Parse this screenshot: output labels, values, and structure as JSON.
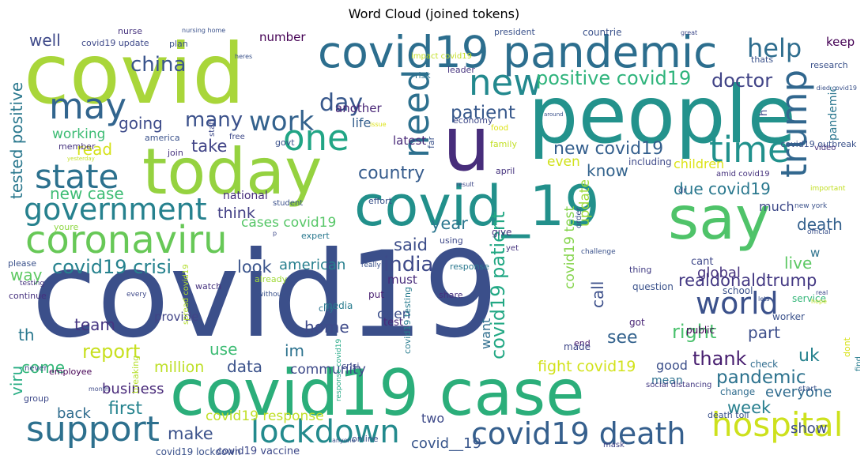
{
  "chart_data": {
    "type": "wordcloud",
    "title": "Word Cloud (joined tokens)",
    "colormap": "viridis",
    "background": "#ffffff",
    "words": [
      {
        "text": "covid19",
        "color": "#3b4f8a"
      },
      {
        "text": "covid",
        "color": "#a9d63a"
      },
      {
        "text": "people",
        "color": "#23928c"
      },
      {
        "text": "covid19 case",
        "color": "#2bae7a"
      },
      {
        "text": "today",
        "color": "#95d240"
      },
      {
        "text": "covid_19",
        "color": "#22908b"
      },
      {
        "text": "say",
        "color": "#4fc369"
      },
      {
        "text": "covid19 pandemic",
        "color": "#2c6e8e"
      },
      {
        "text": "u",
        "color": "#472d7b"
      },
      {
        "text": "coronaviru",
        "color": "#67c857"
      },
      {
        "text": "covid19 death",
        "color": "#355f8d"
      },
      {
        "text": "hospital",
        "color": "#cde11d"
      },
      {
        "text": "support",
        "color": "#2d708e"
      },
      {
        "text": "lockdown",
        "color": "#238a8d"
      },
      {
        "text": "government",
        "color": "#26818e"
      },
      {
        "text": "state",
        "color": "#2c718e"
      },
      {
        "text": "one",
        "color": "#21a585"
      },
      {
        "text": "may",
        "color": "#32658e"
      },
      {
        "text": "time",
        "color": "#21918c"
      },
      {
        "text": "trump",
        "color": "#31678e"
      },
      {
        "text": "new",
        "color": "#23898e"
      },
      {
        "text": "need",
        "color": "#2d708e"
      },
      {
        "text": "world",
        "color": "#3b518b"
      },
      {
        "text": "help",
        "color": "#2e6d8e"
      },
      {
        "text": "day",
        "color": "#38588c"
      },
      {
        "text": "work",
        "color": "#33628d"
      },
      {
        "text": "positive covid19",
        "color": "#2fb47c"
      },
      {
        "text": "covid19 patient",
        "color": "#22a884"
      },
      {
        "text": "china",
        "color": "#3a548c"
      },
      {
        "text": "many",
        "color": "#3b518b"
      },
      {
        "text": "tested positive",
        "color": "#2a788e"
      },
      {
        "text": "covid19 crisi",
        "color": "#26828e"
      },
      {
        "text": "new covid19",
        "color": "#345f8d"
      },
      {
        "text": "doctor",
        "color": "#414487"
      },
      {
        "text": "country",
        "color": "#365c8d"
      },
      {
        "text": "india",
        "color": "#3e4a89"
      },
      {
        "text": "realdonaldtrump",
        "color": "#443983"
      },
      {
        "text": "pandemic",
        "color": "#2c728e"
      },
      {
        "text": "patient",
        "color": "#38598c"
      },
      {
        "text": "due covid19",
        "color": "#2a788e"
      },
      {
        "text": "report",
        "color": "#c8e020"
      },
      {
        "text": "first",
        "color": "#25838e"
      },
      {
        "text": "uk",
        "color": "#26828e"
      },
      {
        "text": "thank",
        "color": "#481f70"
      },
      {
        "text": "right",
        "color": "#4ac16d"
      },
      {
        "text": "see",
        "color": "#33628d"
      },
      {
        "text": "going",
        "color": "#3e4c8a"
      },
      {
        "text": "think",
        "color": "#423f85"
      },
      {
        "text": "well",
        "color": "#3e4989"
      },
      {
        "text": "new case",
        "color": "#3dbc74"
      },
      {
        "text": "know",
        "color": "#33638d"
      },
      {
        "text": "take",
        "color": "#414487"
      },
      {
        "text": "look",
        "color": "#3a548c"
      },
      {
        "text": "said",
        "color": "#3d4e8a"
      },
      {
        "text": "year",
        "color": "#2a768e"
      },
      {
        "text": "week",
        "color": "#277f8e"
      },
      {
        "text": "team",
        "color": "#453581"
      },
      {
        "text": "home",
        "color": "#3e4a89"
      },
      {
        "text": "call",
        "color": "#3c4f8a"
      },
      {
        "text": "part",
        "color": "#3d4e8a"
      },
      {
        "text": "global",
        "color": "#46337e"
      },
      {
        "text": "live",
        "color": "#5cc863"
      },
      {
        "text": "death",
        "color": "#34618d"
      },
      {
        "text": "fight covid19",
        "color": "#d2e21b"
      },
      {
        "text": "data",
        "color": "#3b528b"
      },
      {
        "text": "use",
        "color": "#3dbc74"
      },
      {
        "text": "come",
        "color": "#35b779"
      },
      {
        "text": "million",
        "color": "#bddf26"
      },
      {
        "text": "viru",
        "color": "#25ac82"
      },
      {
        "text": "business",
        "color": "#482979"
      },
      {
        "text": "back",
        "color": "#2f6c8e"
      },
      {
        "text": "make",
        "color": "#3b528b"
      },
      {
        "text": "covid__19",
        "color": "#39568c"
      },
      {
        "text": "way",
        "color": "#5ec962"
      },
      {
        "text": "th",
        "color": "#2a788e"
      },
      {
        "text": "read",
        "color": "#d5e21a"
      },
      {
        "text": "working",
        "color": "#3dbc74"
      },
      {
        "text": "cases covid19",
        "color": "#56c667"
      },
      {
        "text": "american",
        "color": "#277f8e"
      },
      {
        "text": "im",
        "color": "#2c728e"
      },
      {
        "text": "must",
        "color": "#472a7a"
      },
      {
        "text": "another",
        "color": "#482576"
      },
      {
        "text": "life",
        "color": "#355f8d"
      },
      {
        "text": "latest",
        "color": "#482878"
      },
      {
        "text": "even",
        "color": "#d0e11c"
      },
      {
        "text": "update",
        "color": "#9fda3a"
      },
      {
        "text": "want",
        "color": "#2e6e8e"
      },
      {
        "text": "covid19 test",
        "color": "#84d44b"
      },
      {
        "text": "children",
        "color": "#dde318"
      },
      {
        "text": "number",
        "color": "#440154"
      },
      {
        "text": "show",
        "color": "#3d4d8a"
      },
      {
        "text": "everyone",
        "color": "#2f6b8e"
      },
      {
        "text": "good",
        "color": "#3c4f8a"
      },
      {
        "text": "keep",
        "color": "#440154"
      },
      {
        "text": "pandemic",
        "color": "#2a768e"
      },
      {
        "text": "dont",
        "color": "#d8e219"
      },
      {
        "text": "community",
        "color": "#3e4a89"
      },
      {
        "text": "covid19 response",
        "color": "#c0df25"
      },
      {
        "text": "two",
        "color": "#3e4a89"
      },
      {
        "text": "open",
        "color": "#3c4f8a"
      },
      {
        "text": "student",
        "color": "#3b518b"
      },
      {
        "text": "plan",
        "color": "#3b528b"
      },
      {
        "text": "nurse",
        "color": "#46337e"
      },
      {
        "text": "national",
        "color": "#472d7b"
      },
      {
        "text": "much",
        "color": "#3e4a89"
      },
      {
        "text": "h",
        "color": "#3e4989"
      },
      {
        "text": "w",
        "color": "#2c728e"
      },
      {
        "text": "dr",
        "color": "#3b528b"
      },
      {
        "text": "cant",
        "color": "#3f4889"
      },
      {
        "text": "thing",
        "color": "#433e85"
      },
      {
        "text": "end",
        "color": "#481a6c"
      },
      {
        "text": "school",
        "color": "#3b528b"
      },
      {
        "text": "question",
        "color": "#3b528b"
      },
      {
        "text": "share",
        "color": "#46307e"
      },
      {
        "text": "media",
        "color": "#287c8e"
      },
      {
        "text": "put",
        "color": "#481f70"
      },
      {
        "text": "test",
        "color": "#482878"
      },
      {
        "text": "provide",
        "color": "#414487"
      },
      {
        "text": "public",
        "color": "#440154"
      },
      {
        "text": "got",
        "color": "#482475"
      },
      {
        "text": "made",
        "color": "#3f4889"
      },
      {
        "text": "mean",
        "color": "#2d708e"
      },
      {
        "text": "change",
        "color": "#2f6c8e"
      },
      {
        "text": "service",
        "color": "#34b679"
      },
      {
        "text": "worker",
        "color": "#3b528b"
      },
      {
        "text": "check",
        "color": "#2f6c8e"
      },
      {
        "text": "find",
        "color": "#287c8e"
      },
      {
        "text": "death toll",
        "color": "#3b528b"
      },
      {
        "text": "social distancing",
        "color": "#443a83"
      },
      {
        "text": "start",
        "color": "#3a538b"
      },
      {
        "text": "mask",
        "color": "#414487"
      },
      {
        "text": "employee",
        "color": "#440154"
      },
      {
        "text": "never",
        "color": "#3e4989"
      },
      {
        "text": "group",
        "color": "#3e4989"
      },
      {
        "text": "month",
        "color": "#3e4a89"
      },
      {
        "text": "continue",
        "color": "#46307e"
      },
      {
        "text": "testing",
        "color": "#46337e"
      },
      {
        "text": "please",
        "color": "#3b528b"
      },
      {
        "text": "youre",
        "color": "#8fd744"
      },
      {
        "text": "expert",
        "color": "#2a788e"
      },
      {
        "text": "covid19 lockdown",
        "color": "#3b528b"
      },
      {
        "text": "covid19 vaccine",
        "color": "#3e4989"
      },
      {
        "text": "breaking",
        "color": "#b5de2b"
      },
      {
        "text": "covid19 testing",
        "color": "#287c8e"
      },
      {
        "text": "spread covid19",
        "color": "#b2dd2d"
      },
      {
        "text": "response covid19",
        "color": "#22a884"
      },
      {
        "text": "crisi",
        "color": "#3e4989"
      },
      {
        "text": "online",
        "color": "#3b528b"
      },
      {
        "text": "city",
        "color": "#2c728e"
      },
      {
        "text": "without",
        "color": "#3b528b"
      },
      {
        "text": "already",
        "color": "#a0da39"
      },
      {
        "text": "watch",
        "color": "#46337e"
      },
      {
        "text": "every",
        "color": "#3e4989"
      },
      {
        "text": "really",
        "color": "#3b528b"
      },
      {
        "text": "yet",
        "color": "#46337e"
      },
      {
        "text": "using",
        "color": "#3e4989"
      },
      {
        "text": "challenge",
        "color": "#3b528b"
      },
      {
        "text": "give",
        "color": "#46337e"
      },
      {
        "text": "response",
        "color": "#2a788e"
      },
      {
        "text": "p",
        "color": "#3e4989"
      },
      {
        "text": "effort",
        "color": "#3b528b"
      },
      {
        "text": "result",
        "color": "#3e4989"
      },
      {
        "text": "order",
        "color": "#3b528b"
      },
      {
        "text": "including",
        "color": "#3e4989"
      },
      {
        "text": "april",
        "color": "#46337e"
      },
      {
        "text": "amid covid19",
        "color": "#46337e"
      },
      {
        "text": "new york",
        "color": "#3b528b"
      },
      {
        "text": "important",
        "color": "#c2df23"
      },
      {
        "text": "official",
        "color": "#3b528b"
      },
      {
        "text": "covid19 outbreak",
        "color": "#3b528b"
      },
      {
        "text": "video",
        "color": "#46337e"
      },
      {
        "text": "died covid19",
        "color": "#3b528b"
      },
      {
        "text": "research",
        "color": "#3b528b"
      },
      {
        "text": "thats",
        "color": "#3b528b"
      },
      {
        "text": "risk",
        "color": "#2c728e"
      },
      {
        "text": "leader",
        "color": "#46337e"
      },
      {
        "text": "president",
        "color": "#3b528b"
      },
      {
        "text": "countrie",
        "color": "#3b528b"
      },
      {
        "text": "great",
        "color": "#3e4989"
      },
      {
        "text": "impact covid19",
        "color": "#c2df23"
      },
      {
        "text": "nursing home",
        "color": "#3b528b"
      },
      {
        "text": "covid19 update",
        "color": "#3e4989"
      },
      {
        "text": "heres",
        "color": "#3b528b"
      },
      {
        "text": "anyone",
        "color": "#3b528b"
      },
      {
        "text": "far",
        "color": "#3b528b"
      },
      {
        "text": "food",
        "color": "#dde318"
      },
      {
        "text": "family",
        "color": "#c2df23"
      },
      {
        "text": "economy",
        "color": "#3e4989"
      },
      {
        "text": "issue",
        "color": "#dde318"
      },
      {
        "text": "around",
        "color": "#3b528b"
      },
      {
        "text": "staff",
        "color": "#3e4989"
      },
      {
        "text": "free",
        "color": "#3e4989"
      },
      {
        "text": "govt",
        "color": "#3b528b"
      },
      {
        "text": "america",
        "color": "#3b528b"
      },
      {
        "text": "join",
        "color": "#46337e"
      },
      {
        "text": "member",
        "color": "#46337e"
      },
      {
        "text": "yesterday",
        "color": "#c2df23"
      },
      {
        "text": "lets",
        "color": "#3b528b"
      },
      {
        "text": "hope",
        "color": "#c2df23"
      },
      {
        "text": "real",
        "color": "#3e4989"
      }
    ]
  }
}
